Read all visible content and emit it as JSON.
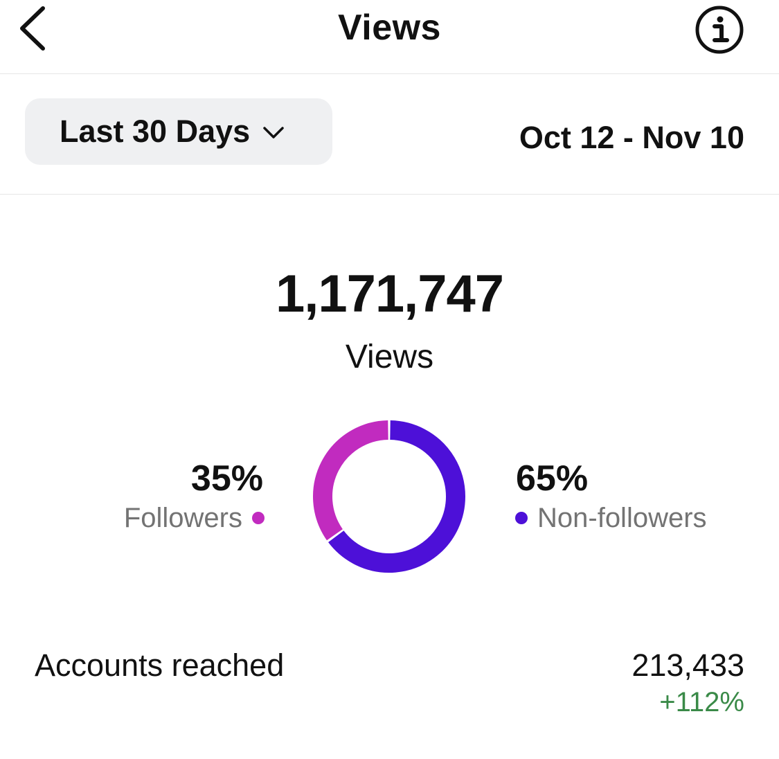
{
  "header": {
    "title": "Views",
    "back_icon": "chevron-left-icon",
    "info_icon": "info-circle-icon"
  },
  "filter": {
    "range_label": "Last 30 Days",
    "dropdown_icon": "chevron-down-icon",
    "date_range": "Oct 12 - Nov 10"
  },
  "summary": {
    "total": "1,171,747",
    "label": "Views"
  },
  "chart_data": {
    "type": "pie",
    "categories": [
      "Followers",
      "Non-followers"
    ],
    "values": [
      35,
      65
    ],
    "labels": [
      "35%",
      "65%"
    ],
    "colors": [
      "#c12bbf",
      "#4d10d8"
    ]
  },
  "colors": {
    "followers": "#c12bbf",
    "non_followers": "#4d10d8",
    "positive": "#3a8a48",
    "muted_text": "#737373",
    "chip_bg": "#eff0f2"
  },
  "metrics": [
    {
      "label": "Accounts reached",
      "value": "213,433",
      "change": "+112%"
    }
  ]
}
